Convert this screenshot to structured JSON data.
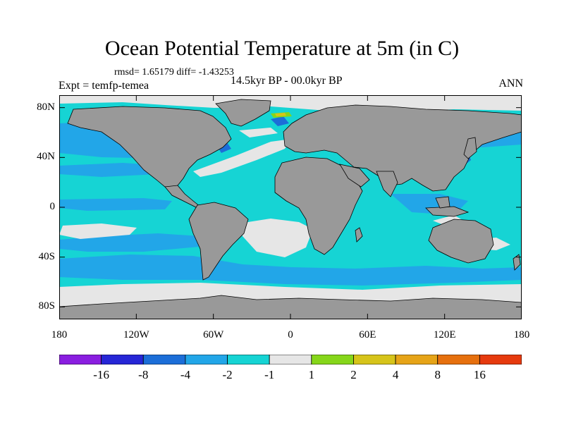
{
  "title": "Ocean Potential Temperature at 5m (in C)",
  "stats": "rmsd= 1.65179 diff= -1.43253",
  "experiment": "Expt = temfp-temea",
  "period": "14.5kyr BP - 00.0kyr BP",
  "season": "ANN",
  "lat_ticks": [
    {
      "label": "80N",
      "lat": 80
    },
    {
      "label": "40N",
      "lat": 40
    },
    {
      "label": "0",
      "lat": 0
    },
    {
      "label": "40S",
      "lat": -40
    },
    {
      "label": "80S",
      "lat": -80
    }
  ],
  "lon_ticks": [
    {
      "label": "180",
      "lon": -180
    },
    {
      "label": "120W",
      "lon": -120
    },
    {
      "label": "60W",
      "lon": -60
    },
    {
      "label": "0",
      "lon": 0
    },
    {
      "label": "60E",
      "lon": 60
    },
    {
      "label": "120E",
      "lon": 120
    },
    {
      "label": "180",
      "lon": 180
    }
  ],
  "colorbar": {
    "colors": [
      "#8a1ee0",
      "#2626d6",
      "#1c6ed8",
      "#22a6e8",
      "#16d4d4",
      "#e6e6e6",
      "#86d61a",
      "#d6c41a",
      "#e6a418",
      "#e6700e",
      "#e63a0e"
    ],
    "labels": [
      "-16",
      "-8",
      "-4",
      "-2",
      "-1",
      "1",
      "2",
      "4",
      "8",
      "16"
    ]
  },
  "map": {
    "land_color": "#999999",
    "ocean_base_color": "#16d4d4",
    "lat_range": [
      -90,
      90
    ],
    "lon_range": [
      -180,
      180
    ]
  }
}
